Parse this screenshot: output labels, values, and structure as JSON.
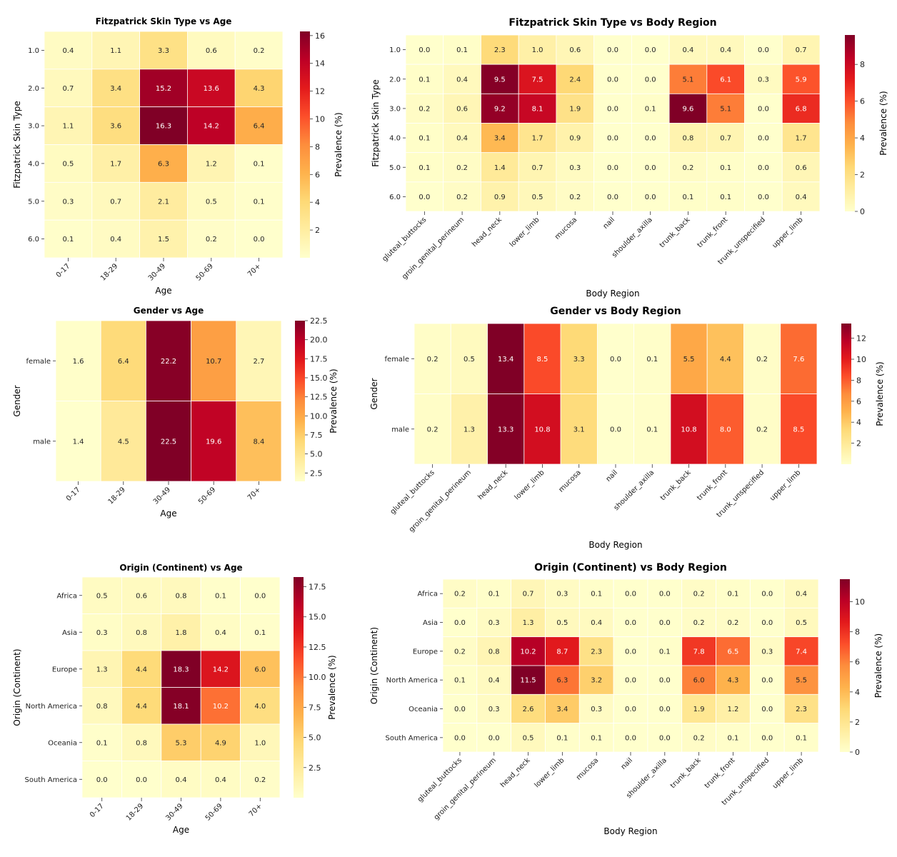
{
  "chart_data": [
    {
      "type": "heatmap",
      "title": "Fitzpatrick Skin Type vs Age",
      "xlabel": "Age",
      "ylabel": "Fitzpatrick Skin Type",
      "colorbar_label": "Prevalence (%)",
      "colorbar_range": [
        0.0,
        16.3
      ],
      "colorbar_ticks": [
        "2",
        "4",
        "6",
        "8",
        "10",
        "12",
        "14",
        "16"
      ],
      "colorbar_tick_values": [
        2,
        4,
        6,
        8,
        10,
        12,
        14,
        16
      ],
      "x_categories": [
        "0-17",
        "18-29",
        "30-49",
        "50-69",
        "70+"
      ],
      "y_categories": [
        "1.0",
        "2.0",
        "3.0",
        "4.0",
        "5.0",
        "6.0"
      ],
      "values": [
        [
          0.4,
          1.1,
          3.3,
          0.6,
          0.2
        ],
        [
          0.7,
          3.4,
          15.2,
          13.6,
          4.3
        ],
        [
          1.1,
          3.6,
          16.3,
          14.2,
          6.4
        ],
        [
          0.5,
          1.7,
          6.3,
          1.2,
          0.1
        ],
        [
          0.3,
          0.7,
          2.1,
          0.5,
          0.1
        ],
        [
          0.1,
          0.4,
          1.5,
          0.2,
          0.0
        ]
      ]
    },
    {
      "type": "heatmap",
      "title": "Fitzpatrick Skin Type vs Body Region",
      "xlabel": "Body Region",
      "ylabel": "Fitzpatrick Skin Type",
      "colorbar_label": "Prevalence (%)",
      "colorbar_range": [
        0.0,
        9.6
      ],
      "colorbar_ticks": [
        "0",
        "2",
        "4",
        "6",
        "8"
      ],
      "colorbar_tick_values": [
        0,
        2,
        4,
        6,
        8
      ],
      "x_categories": [
        "gluteal_buttocks",
        "groin_genital_perineum",
        "head_neck",
        "lower_limb",
        "mucosa",
        "nail",
        "shoulder_axilla",
        "trunk_back",
        "trunk_front",
        "trunk_unspecified",
        "upper_limb"
      ],
      "y_categories": [
        "1.0",
        "2.0",
        "3.0",
        "4.0",
        "5.0",
        "6.0"
      ],
      "values": [
        [
          0.0,
          0.1,
          2.3,
          1.0,
          0.6,
          0.0,
          0.0,
          0.4,
          0.4,
          0.0,
          0.7
        ],
        [
          0.1,
          0.4,
          9.5,
          7.5,
          2.4,
          0.0,
          0.0,
          5.1,
          6.1,
          0.3,
          5.9
        ],
        [
          0.2,
          0.6,
          9.2,
          8.1,
          1.9,
          0.0,
          0.1,
          9.6,
          5.1,
          0.0,
          6.8
        ],
        [
          0.1,
          0.4,
          3.4,
          1.7,
          0.9,
          0.0,
          0.0,
          0.8,
          0.7,
          0.0,
          1.7
        ],
        [
          0.1,
          0.2,
          1.4,
          0.7,
          0.3,
          0.0,
          0.0,
          0.2,
          0.1,
          0.0,
          0.6
        ],
        [
          0.0,
          0.2,
          0.9,
          0.5,
          0.2,
          0.0,
          0.0,
          0.1,
          0.1,
          0.0,
          0.4
        ]
      ]
    },
    {
      "type": "heatmap",
      "title": "Gender vs Age",
      "xlabel": "Age",
      "ylabel": "Gender",
      "colorbar_label": "Prevalence (%)",
      "colorbar_range": [
        1.4,
        22.5
      ],
      "colorbar_ticks": [
        "2.5",
        "5.0",
        "7.5",
        "10.0",
        "12.5",
        "15.0",
        "17.5",
        "20.0",
        "22.5"
      ],
      "colorbar_tick_values": [
        2.5,
        5.0,
        7.5,
        10.0,
        12.5,
        15.0,
        17.5,
        20.0,
        22.5
      ],
      "x_categories": [
        "0-17",
        "18-29",
        "30-49",
        "50-69",
        "70+"
      ],
      "y_categories": [
        "female",
        "male"
      ],
      "values": [
        [
          1.6,
          6.4,
          22.2,
          10.7,
          2.7
        ],
        [
          1.4,
          4.5,
          22.5,
          19.6,
          8.4
        ]
      ]
    },
    {
      "type": "heatmap",
      "title": "Gender vs Body Region",
      "xlabel": "Body Region",
      "ylabel": "Gender",
      "colorbar_label": "Prevalence (%)",
      "colorbar_range": [
        0.0,
        13.4
      ],
      "colorbar_ticks": [
        "2",
        "4",
        "6",
        "8",
        "10",
        "12"
      ],
      "colorbar_tick_values": [
        2,
        4,
        6,
        8,
        10,
        12
      ],
      "x_categories": [
        "gluteal_buttocks",
        "groin_genital_perineum",
        "head_neck",
        "lower_limb",
        "mucosa",
        "nail",
        "shoulder_axilla",
        "trunk_back",
        "trunk_front",
        "trunk_unspecified",
        "upper_limb"
      ],
      "y_categories": [
        "female",
        "male"
      ],
      "values": [
        [
          0.2,
          0.5,
          13.4,
          8.5,
          3.3,
          0.0,
          0.1,
          5.5,
          4.4,
          0.2,
          7.6
        ],
        [
          0.2,
          1.3,
          13.3,
          10.8,
          3.1,
          0.0,
          0.1,
          10.8,
          8.0,
          0.2,
          8.5
        ]
      ]
    },
    {
      "type": "heatmap",
      "title": "Origin (Continent) vs Age",
      "xlabel": "Age",
      "ylabel": "Origin (Continent)",
      "colorbar_label": "Prevalence (%)",
      "colorbar_range": [
        0.0,
        18.3
      ],
      "colorbar_ticks": [
        "2.5",
        "5.0",
        "7.5",
        "10.0",
        "12.5",
        "15.0",
        "17.5"
      ],
      "colorbar_tick_values": [
        2.5,
        5.0,
        7.5,
        10.0,
        12.5,
        15.0,
        17.5
      ],
      "x_categories": [
        "0-17",
        "18-29",
        "30-49",
        "50-69",
        "70+"
      ],
      "y_categories": [
        "Africa",
        "Asia",
        "Europe",
        "North America",
        "Oceania",
        "South America"
      ],
      "values": [
        [
          0.5,
          0.6,
          0.8,
          0.1,
          0.0
        ],
        [
          0.3,
          0.8,
          1.8,
          0.4,
          0.1
        ],
        [
          1.3,
          4.4,
          18.3,
          14.2,
          6.0
        ],
        [
          0.8,
          4.4,
          18.1,
          10.2,
          4.0
        ],
        [
          0.1,
          0.8,
          5.3,
          4.9,
          1.0
        ],
        [
          0.0,
          0.0,
          0.4,
          0.4,
          0.2
        ]
      ]
    },
    {
      "type": "heatmap",
      "title": "Origin (Continent) vs Body Region",
      "xlabel": "Body Region",
      "ylabel": "Origin (Continent)",
      "colorbar_label": "Prevalence (%)",
      "colorbar_range": [
        0.0,
        11.5
      ],
      "colorbar_ticks": [
        "0",
        "2",
        "4",
        "6",
        "8",
        "10"
      ],
      "colorbar_tick_values": [
        0,
        2,
        4,
        6,
        8,
        10
      ],
      "x_categories": [
        "gluteal_buttocks",
        "groin_genital_perineum",
        "head_neck",
        "lower_limb",
        "mucosa",
        "nail",
        "shoulder_axilla",
        "trunk_back",
        "trunk_front",
        "trunk_unspecified",
        "upper_limb"
      ],
      "y_categories": [
        "Africa",
        "Asia",
        "Europe",
        "North America",
        "Oceania",
        "South America"
      ],
      "values": [
        [
          0.2,
          0.1,
          0.7,
          0.3,
          0.1,
          0.0,
          0.0,
          0.2,
          0.1,
          0.0,
          0.4
        ],
        [
          0.0,
          0.3,
          1.3,
          0.5,
          0.4,
          0.0,
          0.0,
          0.2,
          0.2,
          0.0,
          0.5
        ],
        [
          0.2,
          0.8,
          10.2,
          8.7,
          2.3,
          0.0,
          0.1,
          7.8,
          6.5,
          0.3,
          7.4
        ],
        [
          0.1,
          0.4,
          11.5,
          6.3,
          3.2,
          0.0,
          0.0,
          6.0,
          4.3,
          0.0,
          5.5
        ],
        [
          0.0,
          0.3,
          2.6,
          3.4,
          0.3,
          0.0,
          0.0,
          1.9,
          1.2,
          0.0,
          2.3
        ],
        [
          0.0,
          0.0,
          0.5,
          0.1,
          0.1,
          0.0,
          0.0,
          0.2,
          0.1,
          0.0,
          0.1
        ]
      ]
    }
  ]
}
